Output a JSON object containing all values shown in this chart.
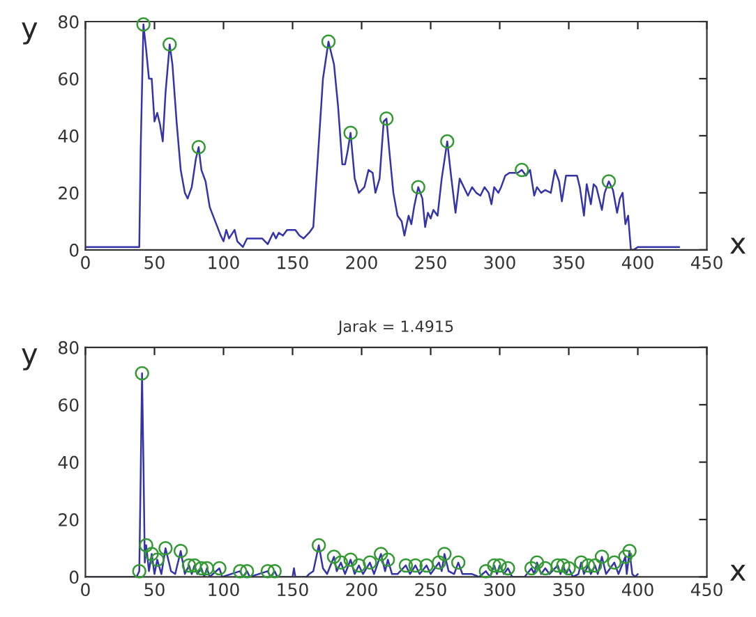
{
  "chart_data": [
    {
      "type": "line",
      "xlabel": "x",
      "ylabel": "y",
      "xlim": [
        0,
        450
      ],
      "ylim": [
        0,
        80
      ],
      "xticks": [
        0,
        50,
        100,
        150,
        200,
        250,
        300,
        350,
        400,
        450
      ],
      "yticks": [
        0,
        20,
        40,
        60,
        80
      ],
      "grid": false,
      "legend": false,
      "marker": "none",
      "line_style": "solid",
      "series": [
        {
          "color": "#3333aa",
          "x": [
            0,
            39,
            40,
            42,
            44,
            46,
            48,
            50,
            52,
            54,
            56,
            58,
            61,
            63,
            66,
            69,
            72,
            74,
            77,
            80,
            82,
            84,
            87,
            90,
            94,
            98,
            100,
            102,
            104,
            108,
            110,
            114,
            117,
            122,
            128,
            132,
            136,
            138,
            140,
            143,
            146,
            152,
            155,
            158,
            162,
            165,
            168,
            172,
            176,
            180,
            183,
            186,
            188,
            190,
            192,
            195,
            198,
            202,
            205,
            208,
            210,
            213,
            216,
            218,
            220,
            223,
            226,
            229,
            231,
            234,
            236,
            238,
            241,
            244,
            246,
            248,
            250,
            252,
            255,
            258,
            262,
            265,
            268,
            271,
            274,
            277,
            280,
            283,
            286,
            289,
            292,
            294,
            296,
            299,
            301,
            304,
            307,
            310,
            313,
            316,
            319,
            322,
            325,
            327,
            330,
            333,
            337,
            340,
            343,
            345,
            348,
            352,
            356,
            358,
            361,
            363,
            366,
            368,
            370,
            372,
            374,
            376,
            379,
            382,
            385,
            387,
            389,
            391,
            393,
            395,
            397,
            400,
            430
          ],
          "values": [
            1,
            1,
            35,
            79,
            70,
            60,
            60,
            45,
            48,
            44,
            38,
            55,
            72,
            65,
            45,
            28,
            20,
            18,
            22,
            32,
            36,
            28,
            24,
            15,
            10,
            5,
            3,
            7,
            4,
            7,
            3,
            1,
            4,
            4,
            4,
            2,
            6,
            4,
            6,
            5,
            7,
            7,
            5,
            4,
            6,
            8,
            30,
            60,
            73,
            65,
            50,
            30,
            30,
            35,
            41,
            25,
            20,
            22,
            28,
            27,
            20,
            25,
            45,
            46,
            35,
            20,
            12,
            10,
            5,
            12,
            9,
            15,
            22,
            18,
            8,
            13,
            11,
            14,
            12,
            25,
            38,
            25,
            13,
            25,
            22,
            19,
            22,
            20,
            19,
            22,
            20,
            16,
            22,
            20,
            22,
            26,
            27,
            27,
            27,
            28,
            26,
            28,
            19,
            22,
            20,
            21,
            20,
            28,
            24,
            17,
            26,
            26,
            26,
            22,
            12,
            23,
            16,
            23,
            22,
            18,
            14,
            20,
            24,
            21,
            13,
            18,
            20,
            9,
            12,
            0,
            0,
            1,
            1
          ]
        },
        {
          "type": "scatter",
          "marker": "circle",
          "color": "#339933",
          "x": [
            42,
            61,
            82,
            176,
            192,
            218,
            241,
            262,
            316,
            379
          ],
          "values": [
            79,
            72,
            36,
            73,
            41,
            46,
            22,
            38,
            28,
            24
          ]
        }
      ]
    },
    {
      "type": "line",
      "title": "Jarak = 1.4915",
      "xlabel": "x",
      "ylabel": "y",
      "xlim": [
        0,
        450
      ],
      "ylim": [
        0,
        80
      ],
      "xticks": [
        0,
        50,
        100,
        150,
        200,
        250,
        300,
        350,
        400,
        450
      ],
      "yticks": [
        0,
        20,
        40,
        60,
        80
      ],
      "grid": false,
      "legend": false,
      "marker": "none",
      "line_style": "solid",
      "series": [
        {
          "color": "#3333aa",
          "x": [
            0,
            37,
            39,
            40,
            41,
            42,
            43,
            44,
            46,
            48,
            50,
            52,
            55,
            58,
            62,
            65,
            69,
            72,
            75,
            77,
            79,
            81,
            84,
            86,
            88,
            90,
            97,
            99,
            112,
            114,
            117,
            119,
            132,
            134,
            137,
            139,
            150,
            151,
            152,
            160,
            162,
            165,
            169,
            172,
            175,
            180,
            182,
            185,
            188,
            192,
            195,
            198,
            201,
            206,
            209,
            214,
            217,
            219,
            222,
            226,
            232,
            235,
            239,
            242,
            247,
            250,
            256,
            258,
            260,
            263,
            267,
            270,
            273,
            280,
            285,
            290,
            293,
            296,
            298,
            300,
            303,
            306,
            309,
            318,
            323,
            325,
            327,
            330,
            333,
            336,
            342,
            344,
            346,
            348,
            350,
            353,
            357,
            359,
            361,
            364,
            366,
            369,
            371,
            374,
            377,
            383,
            386,
            391,
            392,
            394,
            396,
            398,
            400
          ],
          "values": [
            0,
            0,
            2,
            35,
            71,
            40,
            5,
            11,
            2,
            8,
            1,
            6,
            1,
            10,
            2,
            1,
            9,
            1,
            4,
            1,
            4,
            1,
            3,
            0,
            3,
            0,
            3,
            0,
            2,
            0,
            2,
            0,
            2,
            0,
            2,
            0,
            0,
            3,
            0,
            0,
            1,
            2,
            11,
            3,
            1,
            7,
            2,
            5,
            1,
            6,
            1,
            4,
            1,
            5,
            1,
            8,
            2,
            6,
            1,
            1,
            4,
            1,
            4,
            1,
            4,
            1,
            5,
            2,
            8,
            2,
            1,
            5,
            1,
            1,
            0,
            2,
            0,
            4,
            1,
            4,
            1,
            3,
            0,
            0,
            3,
            1,
            5,
            1,
            3,
            1,
            4,
            1,
            4,
            1,
            3,
            0,
            1,
            5,
            1,
            4,
            1,
            4,
            1,
            7,
            1,
            5,
            1,
            7,
            1,
            9,
            1,
            0,
            1
          ]
        },
        {
          "type": "scatter",
          "marker": "circle",
          "color": "#339933",
          "x": [
            39,
            41,
            44,
            48,
            52,
            58,
            69,
            75,
            79,
            84,
            88,
            97,
            112,
            117,
            132,
            137,
            169,
            180,
            185,
            192,
            198,
            206,
            214,
            219,
            232,
            239,
            247,
            256,
            260,
            270,
            290,
            296,
            300,
            306,
            323,
            327,
            333,
            342,
            346,
            350,
            359,
            364,
            369,
            374,
            383,
            391,
            394
          ],
          "values": [
            2,
            71,
            11,
            8,
            6,
            10,
            9,
            4,
            4,
            3,
            3,
            3,
            2,
            2,
            2,
            2,
            11,
            7,
            5,
            6,
            4,
            5,
            8,
            6,
            4,
            4,
            4,
            5,
            8,
            5,
            2,
            4,
            4,
            3,
            3,
            5,
            3,
            4,
            4,
            3,
            5,
            4,
            4,
            7,
            5,
            7,
            9
          ]
        }
      ]
    }
  ]
}
